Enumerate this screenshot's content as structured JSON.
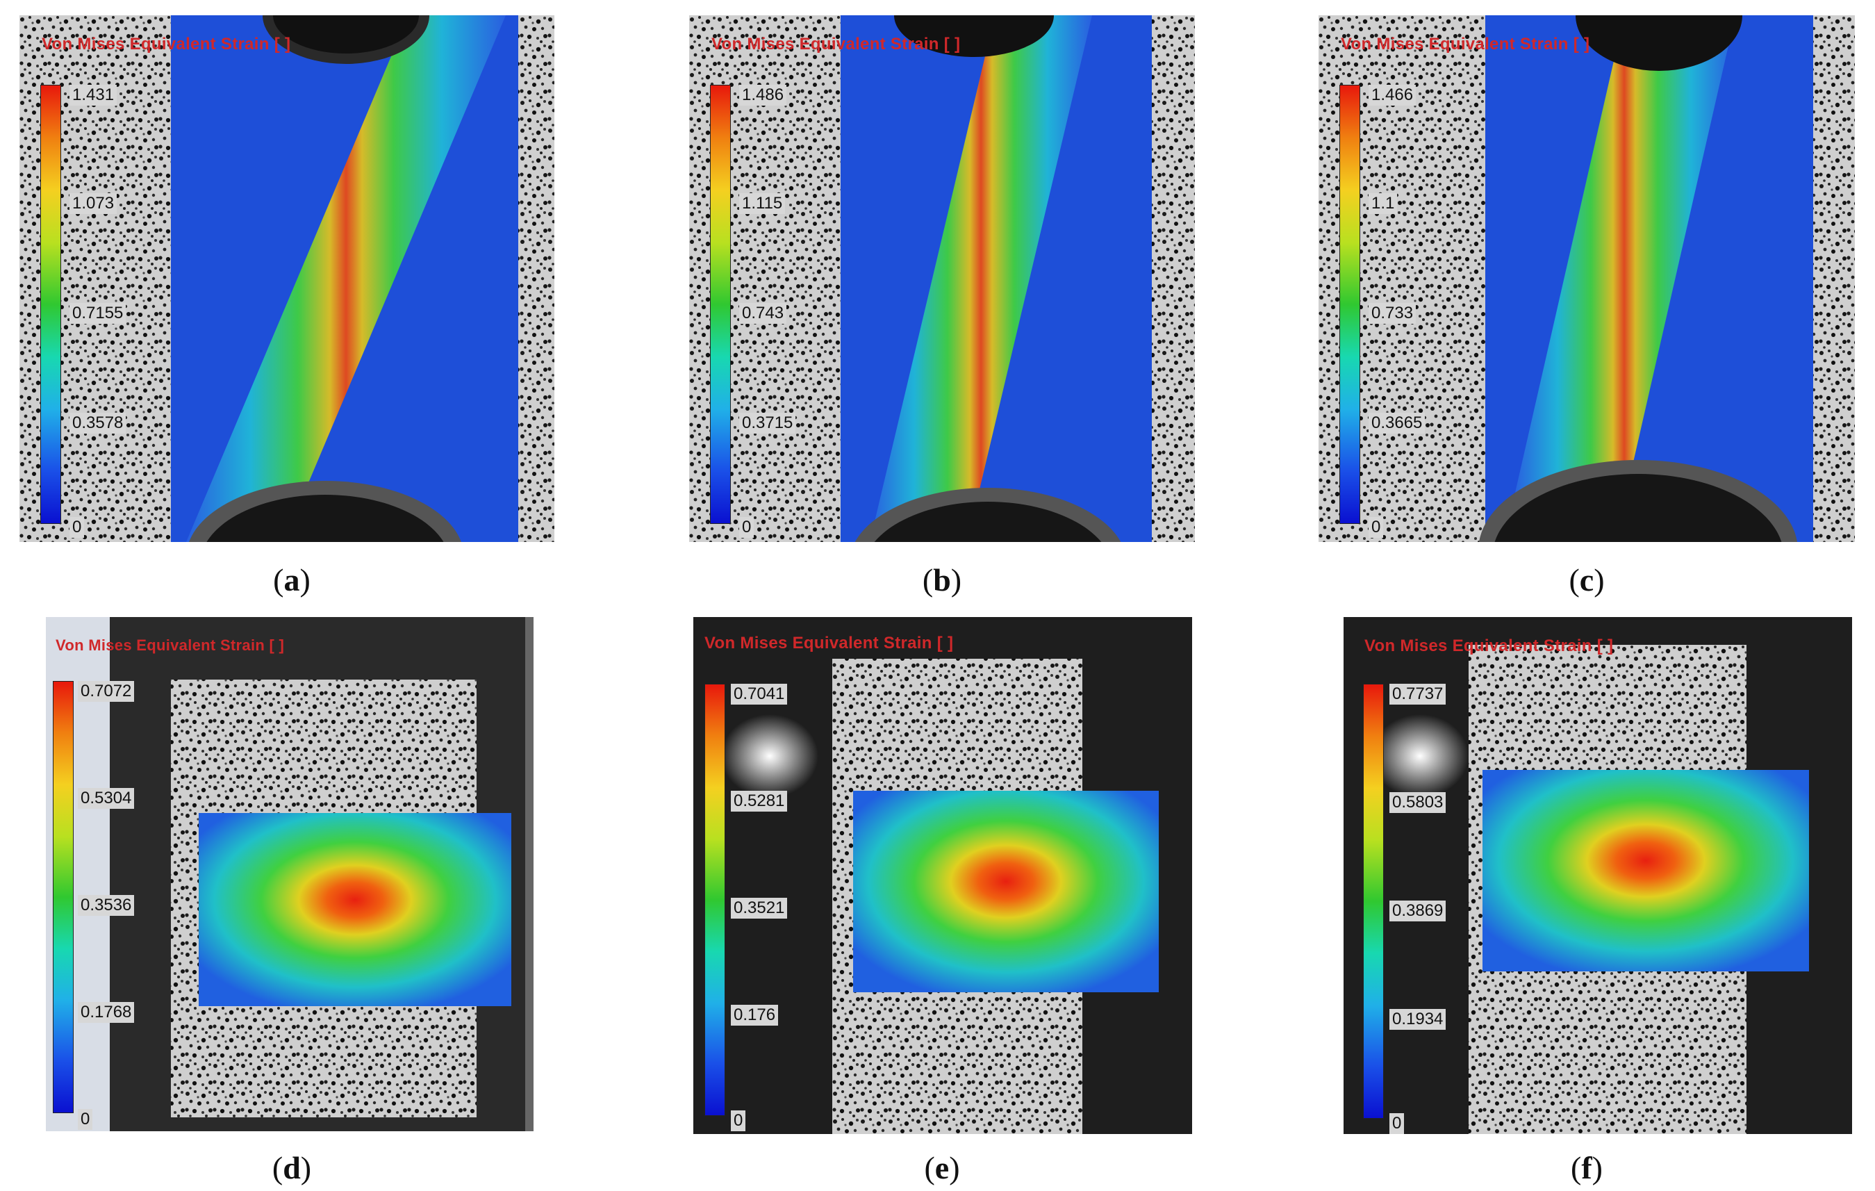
{
  "colorbar_title": "Von Mises Equivalent Strain [ ]",
  "panels": [
    {
      "id": "a",
      "caption": "a",
      "ticks": [
        "1.431",
        "1.073",
        "0.7155",
        "0.3578",
        "0"
      ]
    },
    {
      "id": "b",
      "caption": "b",
      "ticks": [
        "1.486",
        "1.115",
        "0.743",
        "0.3715",
        "0"
      ]
    },
    {
      "id": "c",
      "caption": "c",
      "ticks": [
        "1.466",
        "1.1",
        "0.733",
        "0.3665",
        "0"
      ]
    },
    {
      "id": "d",
      "caption": "d",
      "ticks": [
        "0.7072",
        "0.5304",
        "0.3536",
        "0.1768",
        "0"
      ]
    },
    {
      "id": "e",
      "caption": "e",
      "ticks": [
        "0.7041",
        "0.5281",
        "0.3521",
        "0.176",
        "0"
      ]
    },
    {
      "id": "f",
      "caption": "f",
      "ticks": [
        "0.7737",
        "0.5803",
        "0.3869",
        "0.1934",
        "0"
      ]
    }
  ],
  "colors": {
    "title_red": "#d0282a",
    "field_blue": "#1e4fd8",
    "strain_red": "#e82010"
  }
}
